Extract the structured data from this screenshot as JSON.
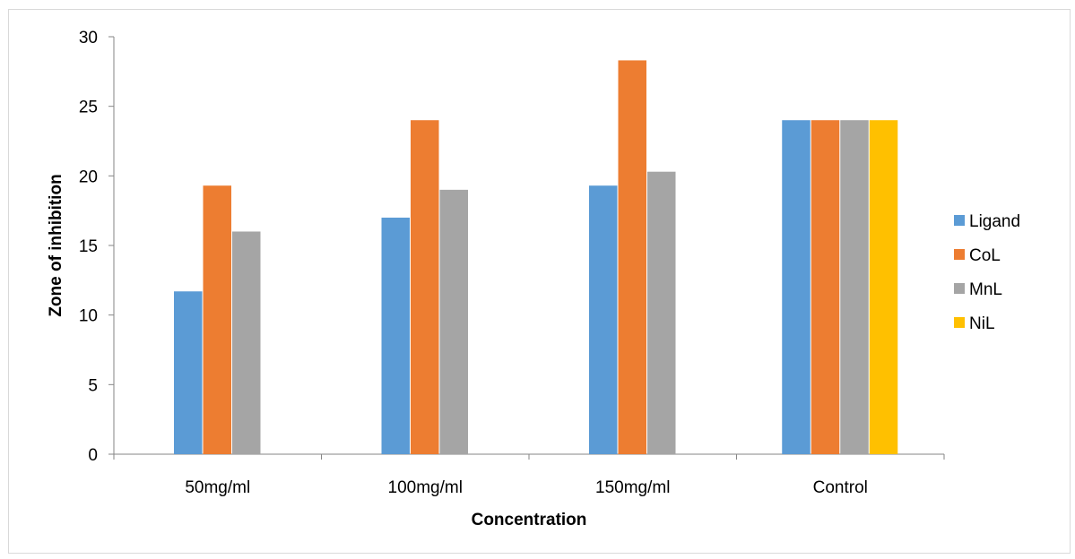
{
  "chart_data": {
    "type": "bar",
    "categories": [
      "50mg/ml",
      "100mg/ml",
      "150mg/ml",
      "Control"
    ],
    "series": [
      {
        "name": "Ligand",
        "color": "#5b9bd5",
        "values": [
          11.7,
          17,
          19.3,
          24
        ]
      },
      {
        "name": "CoL",
        "color": "#ed7d31",
        "values": [
          19.3,
          24,
          28.3,
          24
        ]
      },
      {
        "name": "MnL",
        "color": "#a5a5a5",
        "values": [
          16,
          19,
          20.3,
          24
        ]
      },
      {
        "name": "NiL",
        "color": "#ffc000",
        "values": [
          null,
          null,
          null,
          24
        ]
      }
    ],
    "xlabel": "Concentration",
    "ylabel": "Zone of inhibition",
    "ylim": [
      0,
      30
    ],
    "yticks": [
      0,
      5,
      10,
      15,
      20,
      25,
      30
    ],
    "grid": false,
    "legend_position": "right"
  }
}
